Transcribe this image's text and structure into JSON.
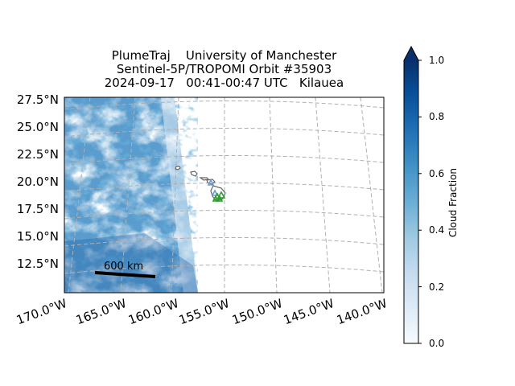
{
  "title": {
    "line1": "PlumeTraj    University of Manchester",
    "line2": "Sentinel-5P/TROPOMI Orbit #35903",
    "line3": "2024-09-17   00:41-00:47 UTC   Kilauea"
  },
  "map": {
    "lat_ticks": [
      "27.5°N",
      "25.0°N",
      "22.5°N",
      "20.0°N",
      "17.5°N",
      "15.0°N",
      "12.5°N"
    ],
    "lon_ticks": [
      "170.0°W",
      "165.0°W",
      "160.0°W",
      "155.0°W",
      "150.0°W",
      "145.0°W",
      "140.0°W"
    ],
    "lat_values": [
      27.5,
      25.0,
      22.5,
      20.0,
      17.5,
      15.0,
      12.5
    ],
    "lon_values": [
      -170,
      -165,
      -160,
      -155,
      -150,
      -145,
      -140
    ],
    "scale_bar_label": "600 km",
    "volcano": "Kilauea",
    "grid": true,
    "gridline_color": "#b0b0b0",
    "coastline_color": "#666666",
    "marker_colors": [
      "#2ca02c",
      "#6b9bd2"
    ]
  },
  "colorbar": {
    "label": "Cloud Fraction",
    "ticks": [
      "1.0",
      "0.8",
      "0.6",
      "0.4",
      "0.2",
      "0.0"
    ],
    "min": 0.0,
    "max": 1.0,
    "extend": "max",
    "colormap": "Blues",
    "colors": [
      "#f7fbff",
      "#deebf7",
      "#c6dbef",
      "#9ecae1",
      "#6baed6",
      "#4292c6",
      "#2171b5",
      "#08519c",
      "#08306b"
    ]
  }
}
